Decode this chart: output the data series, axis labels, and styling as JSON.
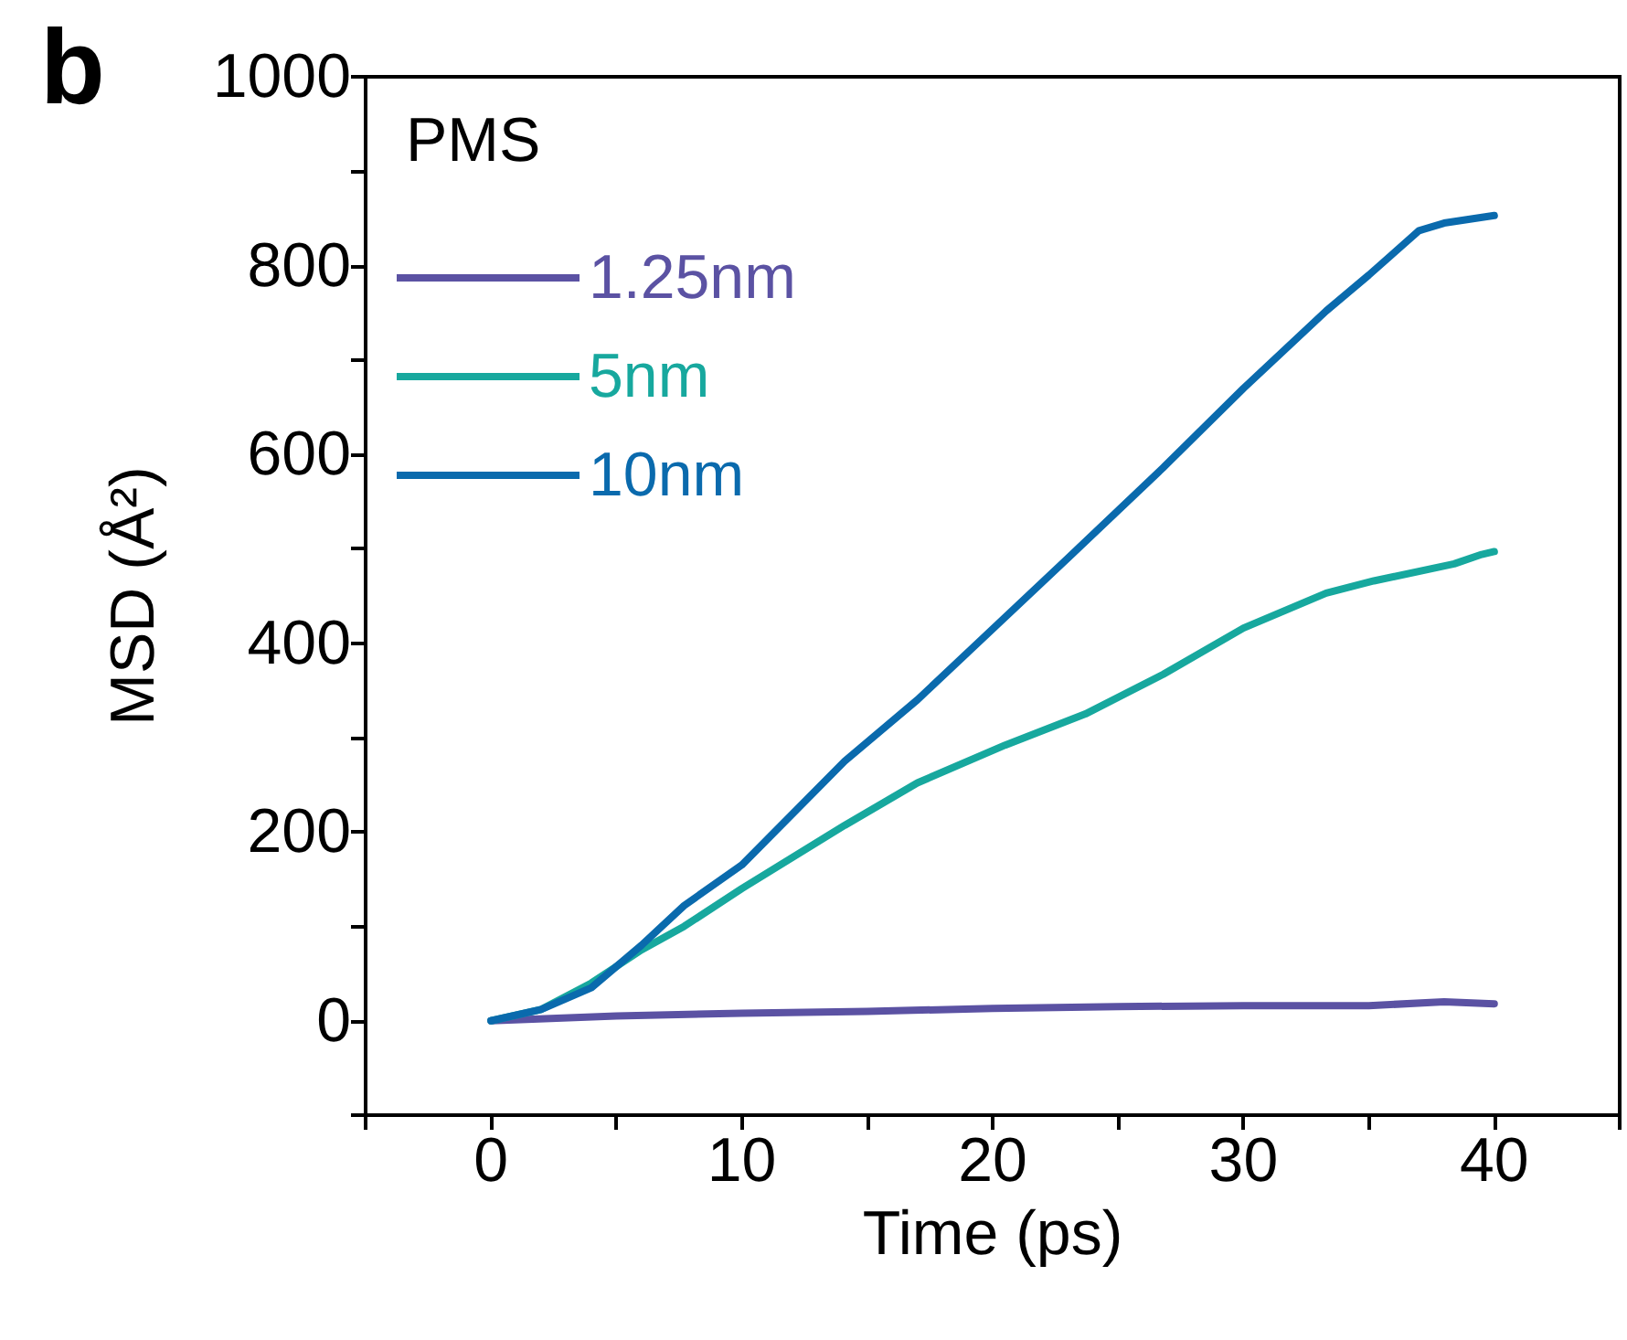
{
  "chart_data": {
    "type": "line",
    "xlabel": "Time (ps)",
    "ylabel": "MSD (Å²)",
    "legend_title": "PMS",
    "legend": "top left",
    "annotations": [
      "b"
    ],
    "xlim": [
      -5,
      45
    ],
    "ylim": [
      -100,
      1000
    ],
    "xticks": [
      {
        "value": -5,
        "label": null
      },
      0,
      {
        "value": 5,
        "label": null
      },
      10,
      {
        "value": 15,
        "label": null
      },
      20,
      {
        "value": 25,
        "label": null
      },
      30,
      {
        "value": 35,
        "label": null
      },
      40,
      {
        "value": 45,
        "label": null
      }
    ],
    "yticks": [
      {
        "value": -100,
        "label": null
      },
      0,
      {
        "value": 100,
        "label": null
      },
      200,
      {
        "value": 300,
        "label": null
      },
      400,
      {
        "value": 500,
        "label": null
      },
      600,
      {
        "value": 700,
        "label": null
      },
      800,
      {
        "value": 900,
        "label": null
      },
      1000
    ],
    "grid": false,
    "marker": "none",
    "line_style": "solid",
    "series": [
      {
        "name": "1.25nm",
        "color": "#5b52a3",
        "x": [
          0,
          5,
          10,
          15,
          20,
          25,
          30,
          35,
          38,
          40
        ],
        "values": [
          0,
          5,
          8,
          10,
          13,
          15,
          16,
          16,
          20,
          18
        ]
      },
      {
        "name": "5nm",
        "color": "#17a89e",
        "x": [
          0,
          2,
          4,
          6,
          7.7,
          10,
          14.1,
          17,
          20.5,
          23.7,
          26.8,
          30,
          33.3,
          35.2,
          38.4,
          39.5,
          40
        ],
        "values": [
          0,
          12,
          40,
          75,
          100,
          140,
          207,
          252,
          292,
          325,
          367,
          416,
          453,
          466,
          484,
          494,
          497
        ]
      },
      {
        "name": "10nm",
        "color": "#0a6aad",
        "x": [
          0,
          2,
          4,
          6,
          7.7,
          10,
          14.1,
          17,
          20,
          23,
          26.8,
          30,
          33.3,
          35,
          37,
          38,
          40
        ],
        "values": [
          0,
          12,
          35,
          80,
          122,
          165,
          275,
          340,
          415,
          490,
          586,
          670,
          752,
          790,
          837,
          845,
          853
        ]
      }
    ]
  }
}
